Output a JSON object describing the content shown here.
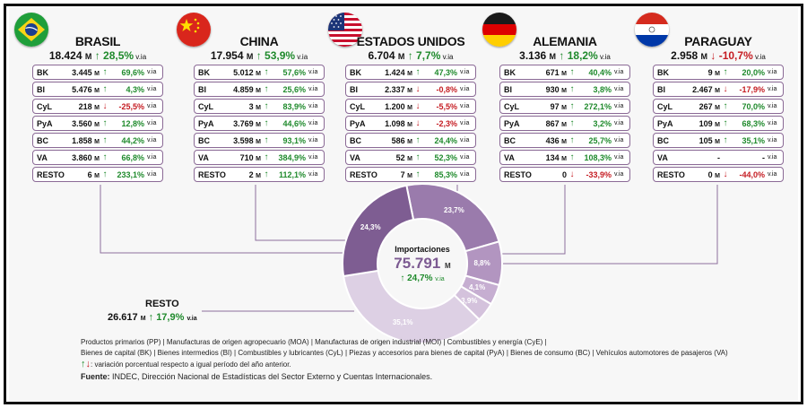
{
  "chart_data": {
    "type": "pie",
    "title": "Importaciones",
    "total": "75.791",
    "total_unit": "M",
    "total_change": "24,7%",
    "total_change_suffix": "v.ia",
    "slices": [
      {
        "label": "23,7%",
        "value": 23.7,
        "color": "#9a7bac"
      },
      {
        "label": "8,8%",
        "value": 8.8,
        "color": "#b295c0"
      },
      {
        "label": "4,1%",
        "value": 4.1,
        "color": "#c6aed1"
      },
      {
        "label": "3,9%",
        "value": 3.9,
        "color": "#d4c2dc"
      },
      {
        "label": "35,1%",
        "value": 35.1,
        "color": "#ddd0e4"
      },
      {
        "label": "24,3%",
        "value": 24.3,
        "color": "#7e5d92"
      }
    ],
    "countries": [
      {
        "name": "BRASIL",
        "total": "18.424",
        "unit": "M",
        "change": "28,5%",
        "dir": "up",
        "suffix": "v.ia",
        "rows": [
          {
            "cat": "BK",
            "val": "3.445",
            "unit": "M",
            "dir": "up",
            "pct": "69,6%"
          },
          {
            "cat": "BI",
            "val": "5.476",
            "unit": "M",
            "dir": "up",
            "pct": "4,3%"
          },
          {
            "cat": "CyL",
            "val": "218",
            "unit": "M",
            "dir": "down",
            "pct": "-25,5%"
          },
          {
            "cat": "PyA",
            "val": "3.560",
            "unit": "M",
            "dir": "up",
            "pct": "12,8%"
          },
          {
            "cat": "BC",
            "val": "1.858",
            "unit": "M",
            "dir": "up",
            "pct": "44,2%"
          },
          {
            "cat": "VA",
            "val": "3.860",
            "unit": "M",
            "dir": "up",
            "pct": "66,8%"
          },
          {
            "cat": "RESTO",
            "val": "6",
            "unit": "M",
            "dir": "up",
            "pct": "233,1%"
          }
        ]
      },
      {
        "name": "CHINA",
        "total": "17.954",
        "unit": "M",
        "change": "53,9%",
        "dir": "up",
        "suffix": "v.ia",
        "rows": [
          {
            "cat": "BK",
            "val": "5.012",
            "unit": "M",
            "dir": "up",
            "pct": "57,6%"
          },
          {
            "cat": "BI",
            "val": "4.859",
            "unit": "M",
            "dir": "up",
            "pct": "25,6%"
          },
          {
            "cat": "CyL",
            "val": "3",
            "unit": "M",
            "dir": "up",
            "pct": "83,9%"
          },
          {
            "cat": "PyA",
            "val": "3.769",
            "unit": "M",
            "dir": "up",
            "pct": "44,6%"
          },
          {
            "cat": "BC",
            "val": "3.598",
            "unit": "M",
            "dir": "up",
            "pct": "93,1%"
          },
          {
            "cat": "VA",
            "val": "710",
            "unit": "M",
            "dir": "up",
            "pct": "384,9%"
          },
          {
            "cat": "RESTO",
            "val": "2",
            "unit": "M",
            "dir": "up",
            "pct": "112,1%"
          }
        ]
      },
      {
        "name": "ESTADOS UNIDOS",
        "total": "6.704",
        "unit": "M",
        "change": "7,7%",
        "dir": "up",
        "suffix": "v.ia",
        "rows": [
          {
            "cat": "BK",
            "val": "1.424",
            "unit": "M",
            "dir": "up",
            "pct": "47,3%"
          },
          {
            "cat": "BI",
            "val": "2.337",
            "unit": "M",
            "dir": "down",
            "pct": "-0,8%"
          },
          {
            "cat": "CyL",
            "val": "1.200",
            "unit": "M",
            "dir": "down",
            "pct": "-5,5%"
          },
          {
            "cat": "PyA",
            "val": "1.098",
            "unit": "M",
            "dir": "down",
            "pct": "-2,3%"
          },
          {
            "cat": "BC",
            "val": "586",
            "unit": "M",
            "dir": "up",
            "pct": "24,4%"
          },
          {
            "cat": "VA",
            "val": "52",
            "unit": "M",
            "dir": "up",
            "pct": "52,3%"
          },
          {
            "cat": "RESTO",
            "val": "7",
            "unit": "M",
            "dir": "up",
            "pct": "85,3%"
          }
        ]
      },
      {
        "name": "ALEMANIA",
        "total": "3.136",
        "unit": "M",
        "change": "18,2%",
        "dir": "up",
        "suffix": "v.ia",
        "rows": [
          {
            "cat": "BK",
            "val": "671",
            "unit": "M",
            "dir": "up",
            "pct": "40,4%"
          },
          {
            "cat": "BI",
            "val": "930",
            "unit": "M",
            "dir": "up",
            "pct": "3,8%"
          },
          {
            "cat": "CyL",
            "val": "97",
            "unit": "M",
            "dir": "up",
            "pct": "272,1%"
          },
          {
            "cat": "PyA",
            "val": "867",
            "unit": "M",
            "dir": "up",
            "pct": "3,2%"
          },
          {
            "cat": "BC",
            "val": "436",
            "unit": "M",
            "dir": "up",
            "pct": "25,7%"
          },
          {
            "cat": "VA",
            "val": "134",
            "unit": "M",
            "dir": "up",
            "pct": "108,3%"
          },
          {
            "cat": "RESTO",
            "val": "0",
            "unit": "",
            "dir": "down",
            "pct": "-33,9%"
          }
        ]
      },
      {
        "name": "PARAGUAY",
        "total": "2.958",
        "unit": "M",
        "change": "-10,7%",
        "dir": "down",
        "suffix": "v.ia",
        "rows": [
          {
            "cat": "BK",
            "val": "9",
            "unit": "M",
            "dir": "up",
            "pct": "20,0%"
          },
          {
            "cat": "BI",
            "val": "2.467",
            "unit": "M",
            "dir": "down",
            "pct": "-17,9%"
          },
          {
            "cat": "CyL",
            "val": "267",
            "unit": "M",
            "dir": "up",
            "pct": "70,0%"
          },
          {
            "cat": "PyA",
            "val": "109",
            "unit": "M",
            "dir": "up",
            "pct": "68,3%"
          },
          {
            "cat": "BC",
            "val": "105",
            "unit": "M",
            "dir": "up",
            "pct": "35,1%"
          },
          {
            "cat": "VA",
            "val": "-",
            "unit": "",
            "dir": "none",
            "pct": "-"
          },
          {
            "cat": "RESTO",
            "val": "0",
            "unit": "M",
            "dir": "down",
            "pct": "-44,0%"
          }
        ]
      }
    ],
    "resto": {
      "name": "RESTO",
      "total": "26.617",
      "unit": "M",
      "change": "17,9%",
      "dir": "up",
      "suffix": "v.ia"
    }
  },
  "legend": {
    "line1": "Productos primarios (PP)  |  Manufacturas de origen agropecuario (MOA)  |  Manufacturas de origen industrial (MOI)  |  Combustibles y energía (CyE)  |",
    "line2": "Bienes de capital (BK)  |  Bienes intermedios (BI)  |  Combustibles y lubricantes (CyL)  |  Piezas y accesorios para bienes de capital (PyA)  |  Bienes de consumo (BC)  |  Vehículos automotores de pasajeros (VA)",
    "note": ": variación porcentual respecto a igual período del año anterior.",
    "source_label": "Fuente:",
    "source_text": " INDEC, Dirección Nacional de Estadísticas del Sector Externo y Cuentas Internacionales."
  },
  "arrows": {
    "up": "↑",
    "down": "↓"
  },
  "flag_icons": [
    "brazil-flag-icon",
    "china-flag-icon",
    "usa-flag-icon",
    "germany-flag-icon",
    "paraguay-flag-icon"
  ]
}
